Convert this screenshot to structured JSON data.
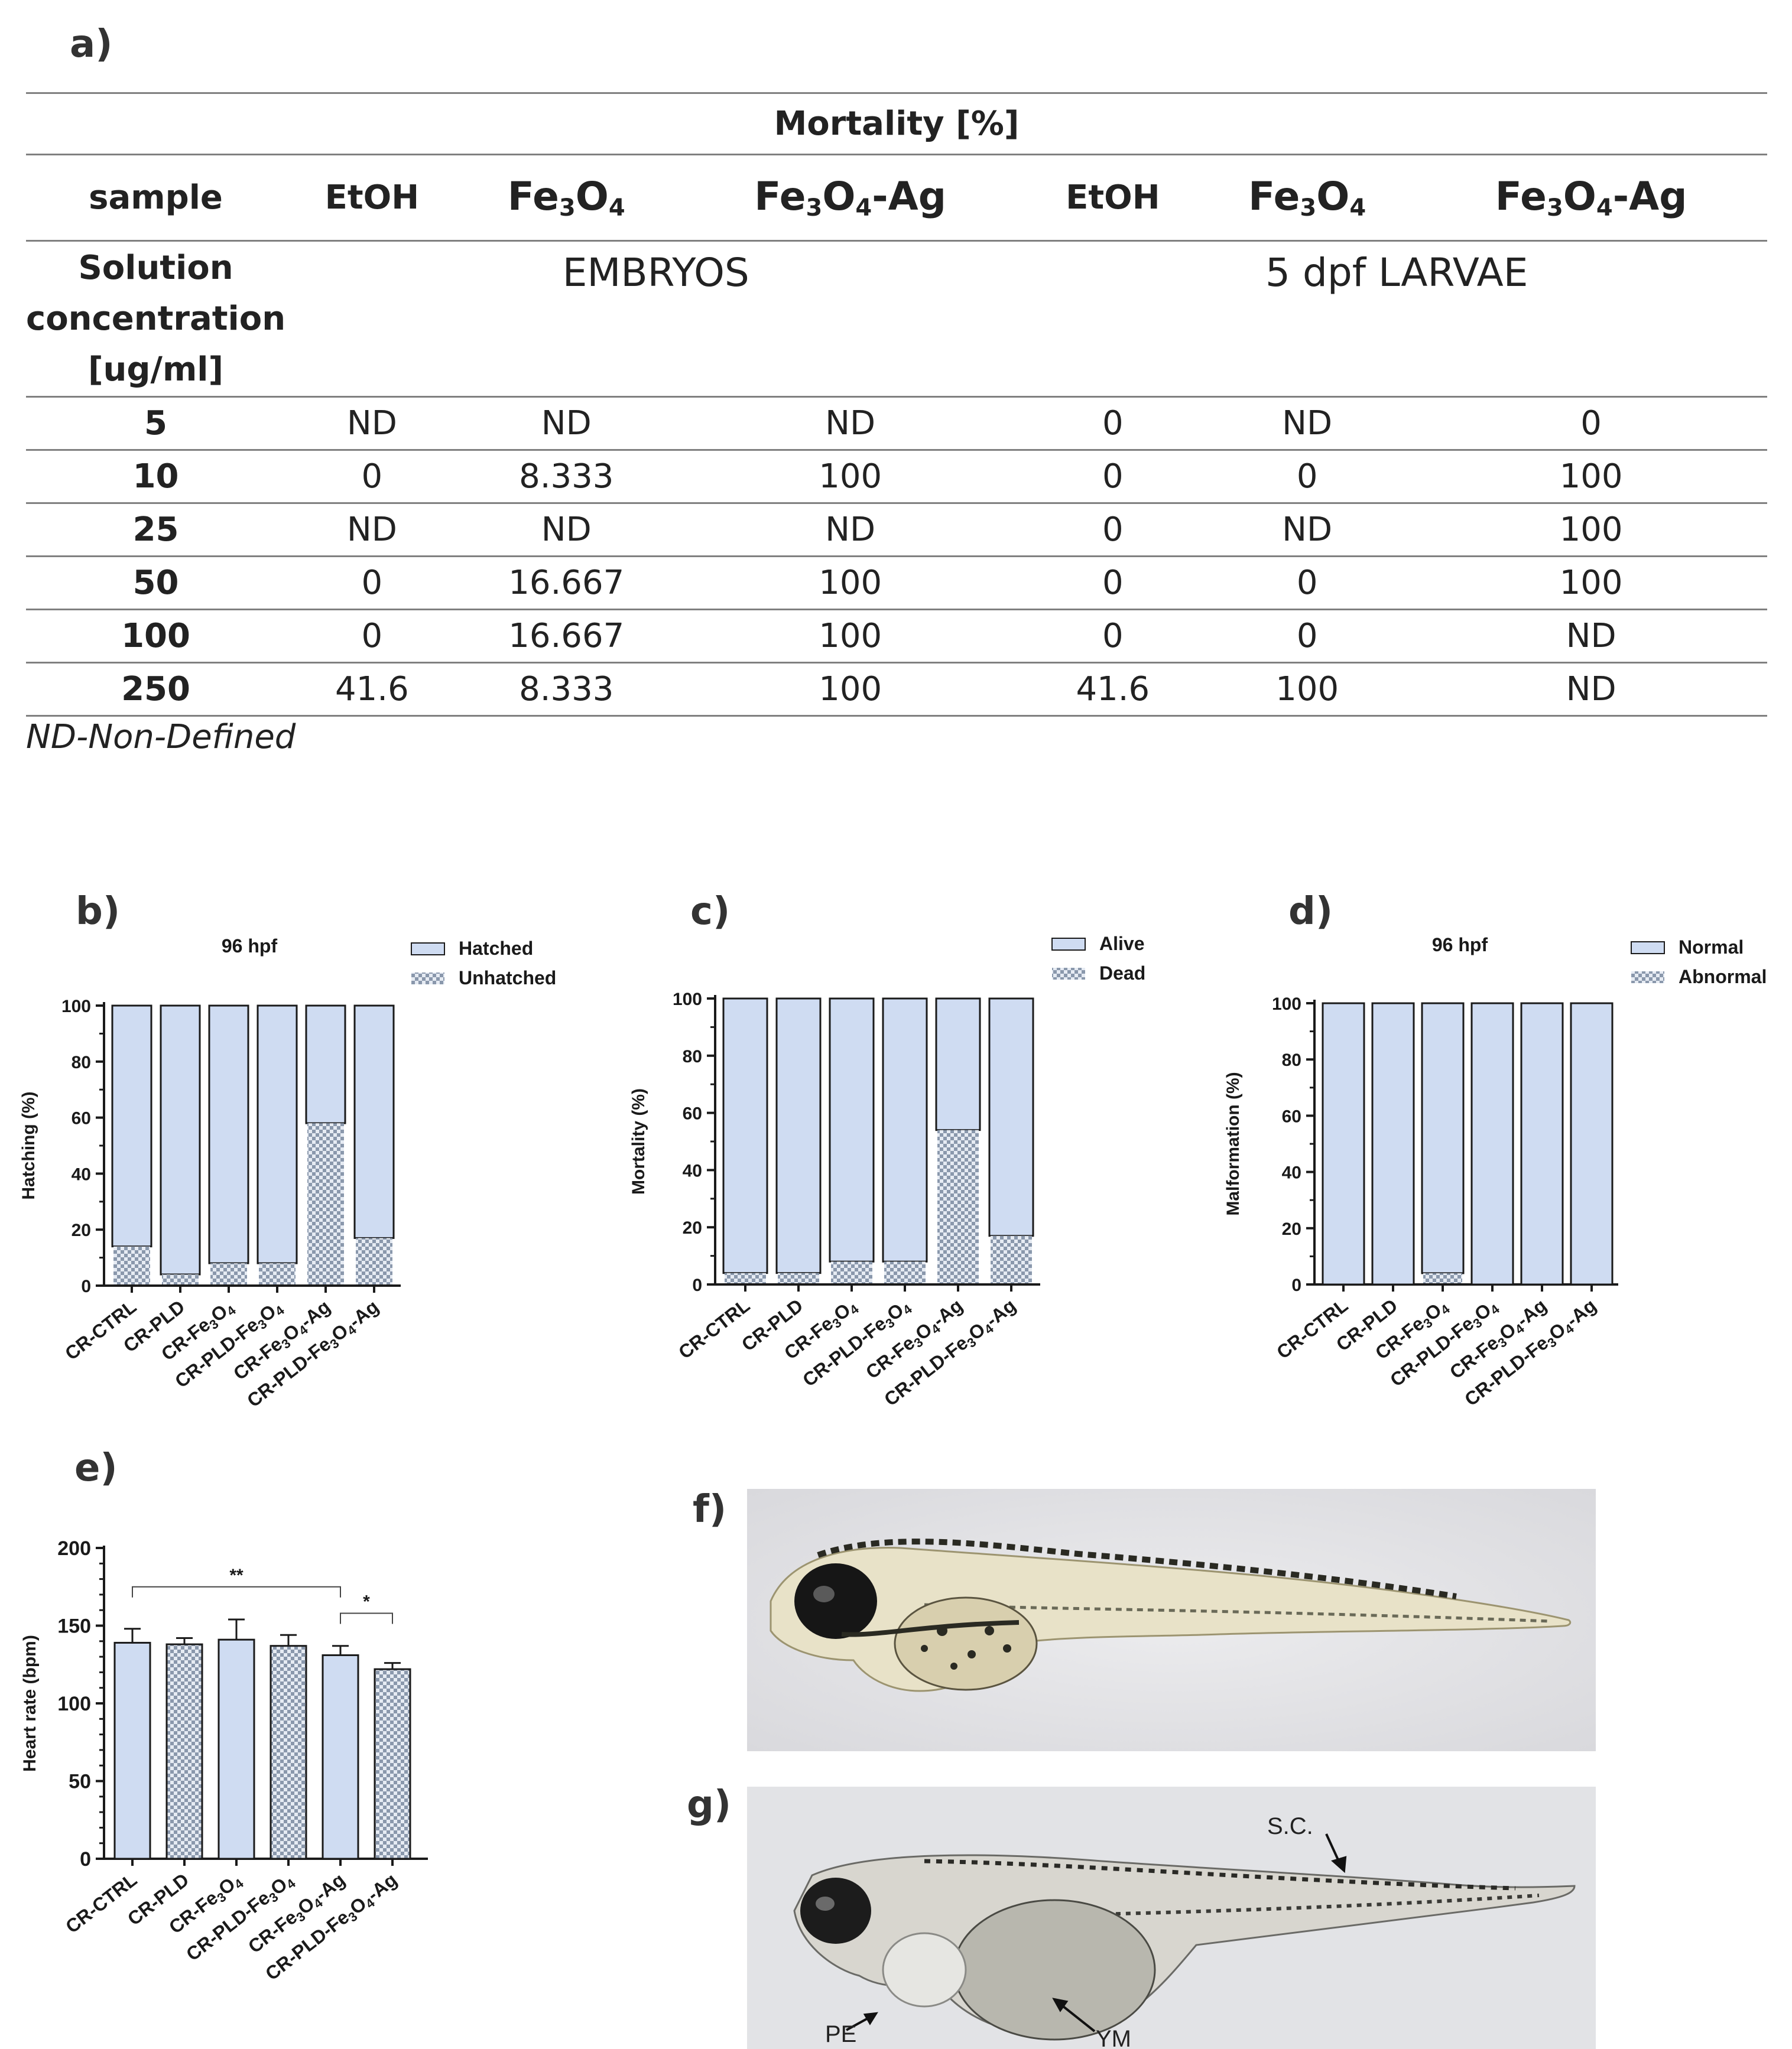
{
  "panels": {
    "a": "a)",
    "b": "b)",
    "c": "c)",
    "d": "d)",
    "e": "e)",
    "f": "f)",
    "g": "g)"
  },
  "table": {
    "title": "Mortality [%]",
    "sample_label": "sample",
    "columns": [
      {
        "base": "EtOH",
        "sub": "",
        "tail": ""
      },
      {
        "base": "Fe",
        "sub": "3",
        "tail": "O",
        "sub2": "4",
        "tail2": ""
      },
      {
        "base": "Fe",
        "sub": "3",
        "tail": "O",
        "sub2": "4",
        "tail2": "-Ag"
      },
      {
        "base": "EtOH",
        "sub": "",
        "tail": ""
      },
      {
        "base": "Fe",
        "sub": "3",
        "tail": "O",
        "sub2": "4",
        "tail2": ""
      },
      {
        "base": "Fe",
        "sub": "3",
        "tail": "O",
        "sub2": "4",
        "tail2": "-Ag"
      }
    ],
    "conc_label_1": "Solution",
    "conc_label_2": "concentration",
    "conc_label_3": "[ug/ml]",
    "group_embryos": "EMBRYOS",
    "group_larvae": "5 dpf LARVAE",
    "rows": [
      {
        "conc": "5",
        "values": [
          "ND",
          "ND",
          "ND",
          "0",
          "ND",
          "0"
        ]
      },
      {
        "conc": "10",
        "values": [
          "0",
          "8.333",
          "100",
          "0",
          "0",
          "100"
        ]
      },
      {
        "conc": "25",
        "values": [
          "ND",
          "ND",
          "ND",
          "0",
          "ND",
          "100"
        ]
      },
      {
        "conc": "50",
        "values": [
          "0",
          "16.667",
          "100",
          "0",
          "0",
          "100"
        ]
      },
      {
        "conc": "100",
        "values": [
          "0",
          "16.667",
          "100",
          "0",
          "0",
          "ND"
        ]
      },
      {
        "conc": "250",
        "values": [
          "41.6",
          "8.333",
          "100",
          "41.6",
          "100",
          "ND"
        ]
      }
    ],
    "footnote": "ND-Non-Defined"
  },
  "colors": {
    "fill": "#cfdcf2",
    "stroke": "#1a1a1a",
    "check_dark": "#8a98ac",
    "check_light": "#e6ebf3"
  },
  "chart_data": [
    {
      "id": "b",
      "type": "bar",
      "stacked": true,
      "title": "96 hpf",
      "ylabel": "Hatching (%)",
      "ylim": [
        0,
        100
      ],
      "yticks": [
        0,
        20,
        40,
        60,
        80,
        100
      ],
      "categories": [
        "CR-CTRL",
        "CR-PLD",
        "CR-Fe3O4",
        "CR-PLD-Fe3O4",
        "CR-Fe3O4-Ag",
        "CR-PLD-Fe3O4-Ag"
      ],
      "series": [
        {
          "name": "Hatched",
          "values": [
            86,
            96,
            92,
            92,
            42,
            83
          ]
        },
        {
          "name": "Unhatched",
          "values": [
            14,
            4,
            8,
            8,
            58,
            17
          ]
        }
      ],
      "legend": "top-right"
    },
    {
      "id": "c",
      "type": "bar",
      "stacked": true,
      "title": "",
      "ylabel": "Mortality (%)",
      "ylim": [
        0,
        100
      ],
      "yticks": [
        0,
        20,
        40,
        60,
        80,
        100
      ],
      "categories": [
        "CR-CTRL",
        "CR-PLD",
        "CR-Fe3O4",
        "CR-PLD-Fe3O4",
        "CR-Fe3O4-Ag",
        "CR-PLD-Fe3O4-Ag"
      ],
      "series": [
        {
          "name": "Alive",
          "values": [
            96,
            96,
            92,
            92,
            46,
            83
          ]
        },
        {
          "name": "Dead",
          "values": [
            4,
            4,
            8,
            8,
            54,
            17
          ]
        }
      ],
      "legend": "top-right"
    },
    {
      "id": "d",
      "type": "bar",
      "stacked": true,
      "title": "96 hpf",
      "ylabel": "Malformation  (%)",
      "ylim": [
        0,
        100
      ],
      "yticks": [
        0,
        20,
        40,
        60,
        80,
        100
      ],
      "categories": [
        "CR-CTRL",
        "CR-PLD",
        "CR-Fe3O4",
        "CR-PLD-Fe3O4",
        "CR-Fe3O4-Ag",
        "CR-PLD-Fe3O4-Ag"
      ],
      "series": [
        {
          "name": "Normal",
          "values": [
            100,
            100,
            96,
            100,
            100,
            100
          ]
        },
        {
          "name": "Abnormal",
          "values": [
            0,
            0,
            4,
            0,
            0,
            0
          ]
        }
      ],
      "legend": "top-right"
    },
    {
      "id": "e",
      "type": "bar",
      "title": "",
      "ylabel": "Heart rate (bpm)",
      "ylim": [
        0,
        200
      ],
      "yticks": [
        0,
        50,
        100,
        150,
        200
      ],
      "categories": [
        "CR-CTRL",
        "CR-PLD",
        "CR-Fe3O4",
        "CR-PLD-Fe3O4",
        "CR-Fe3O4-Ag",
        "CR-PLD-Fe3O4-Ag"
      ],
      "values": [
        139,
        138,
        141,
        137,
        131,
        122
      ],
      "errors": [
        9,
        4,
        13,
        7,
        6,
        4
      ],
      "patterns": [
        "plain",
        "check",
        "plain",
        "check",
        "plain",
        "check"
      ],
      "significance": [
        {
          "from": 0,
          "to": 4,
          "label": "**"
        },
        {
          "from": 4,
          "to": 5,
          "label": "*"
        }
      ]
    }
  ],
  "photos": {
    "g_labels": {
      "sc": "S.C.",
      "pe": "PE",
      "ym": "YM"
    }
  }
}
